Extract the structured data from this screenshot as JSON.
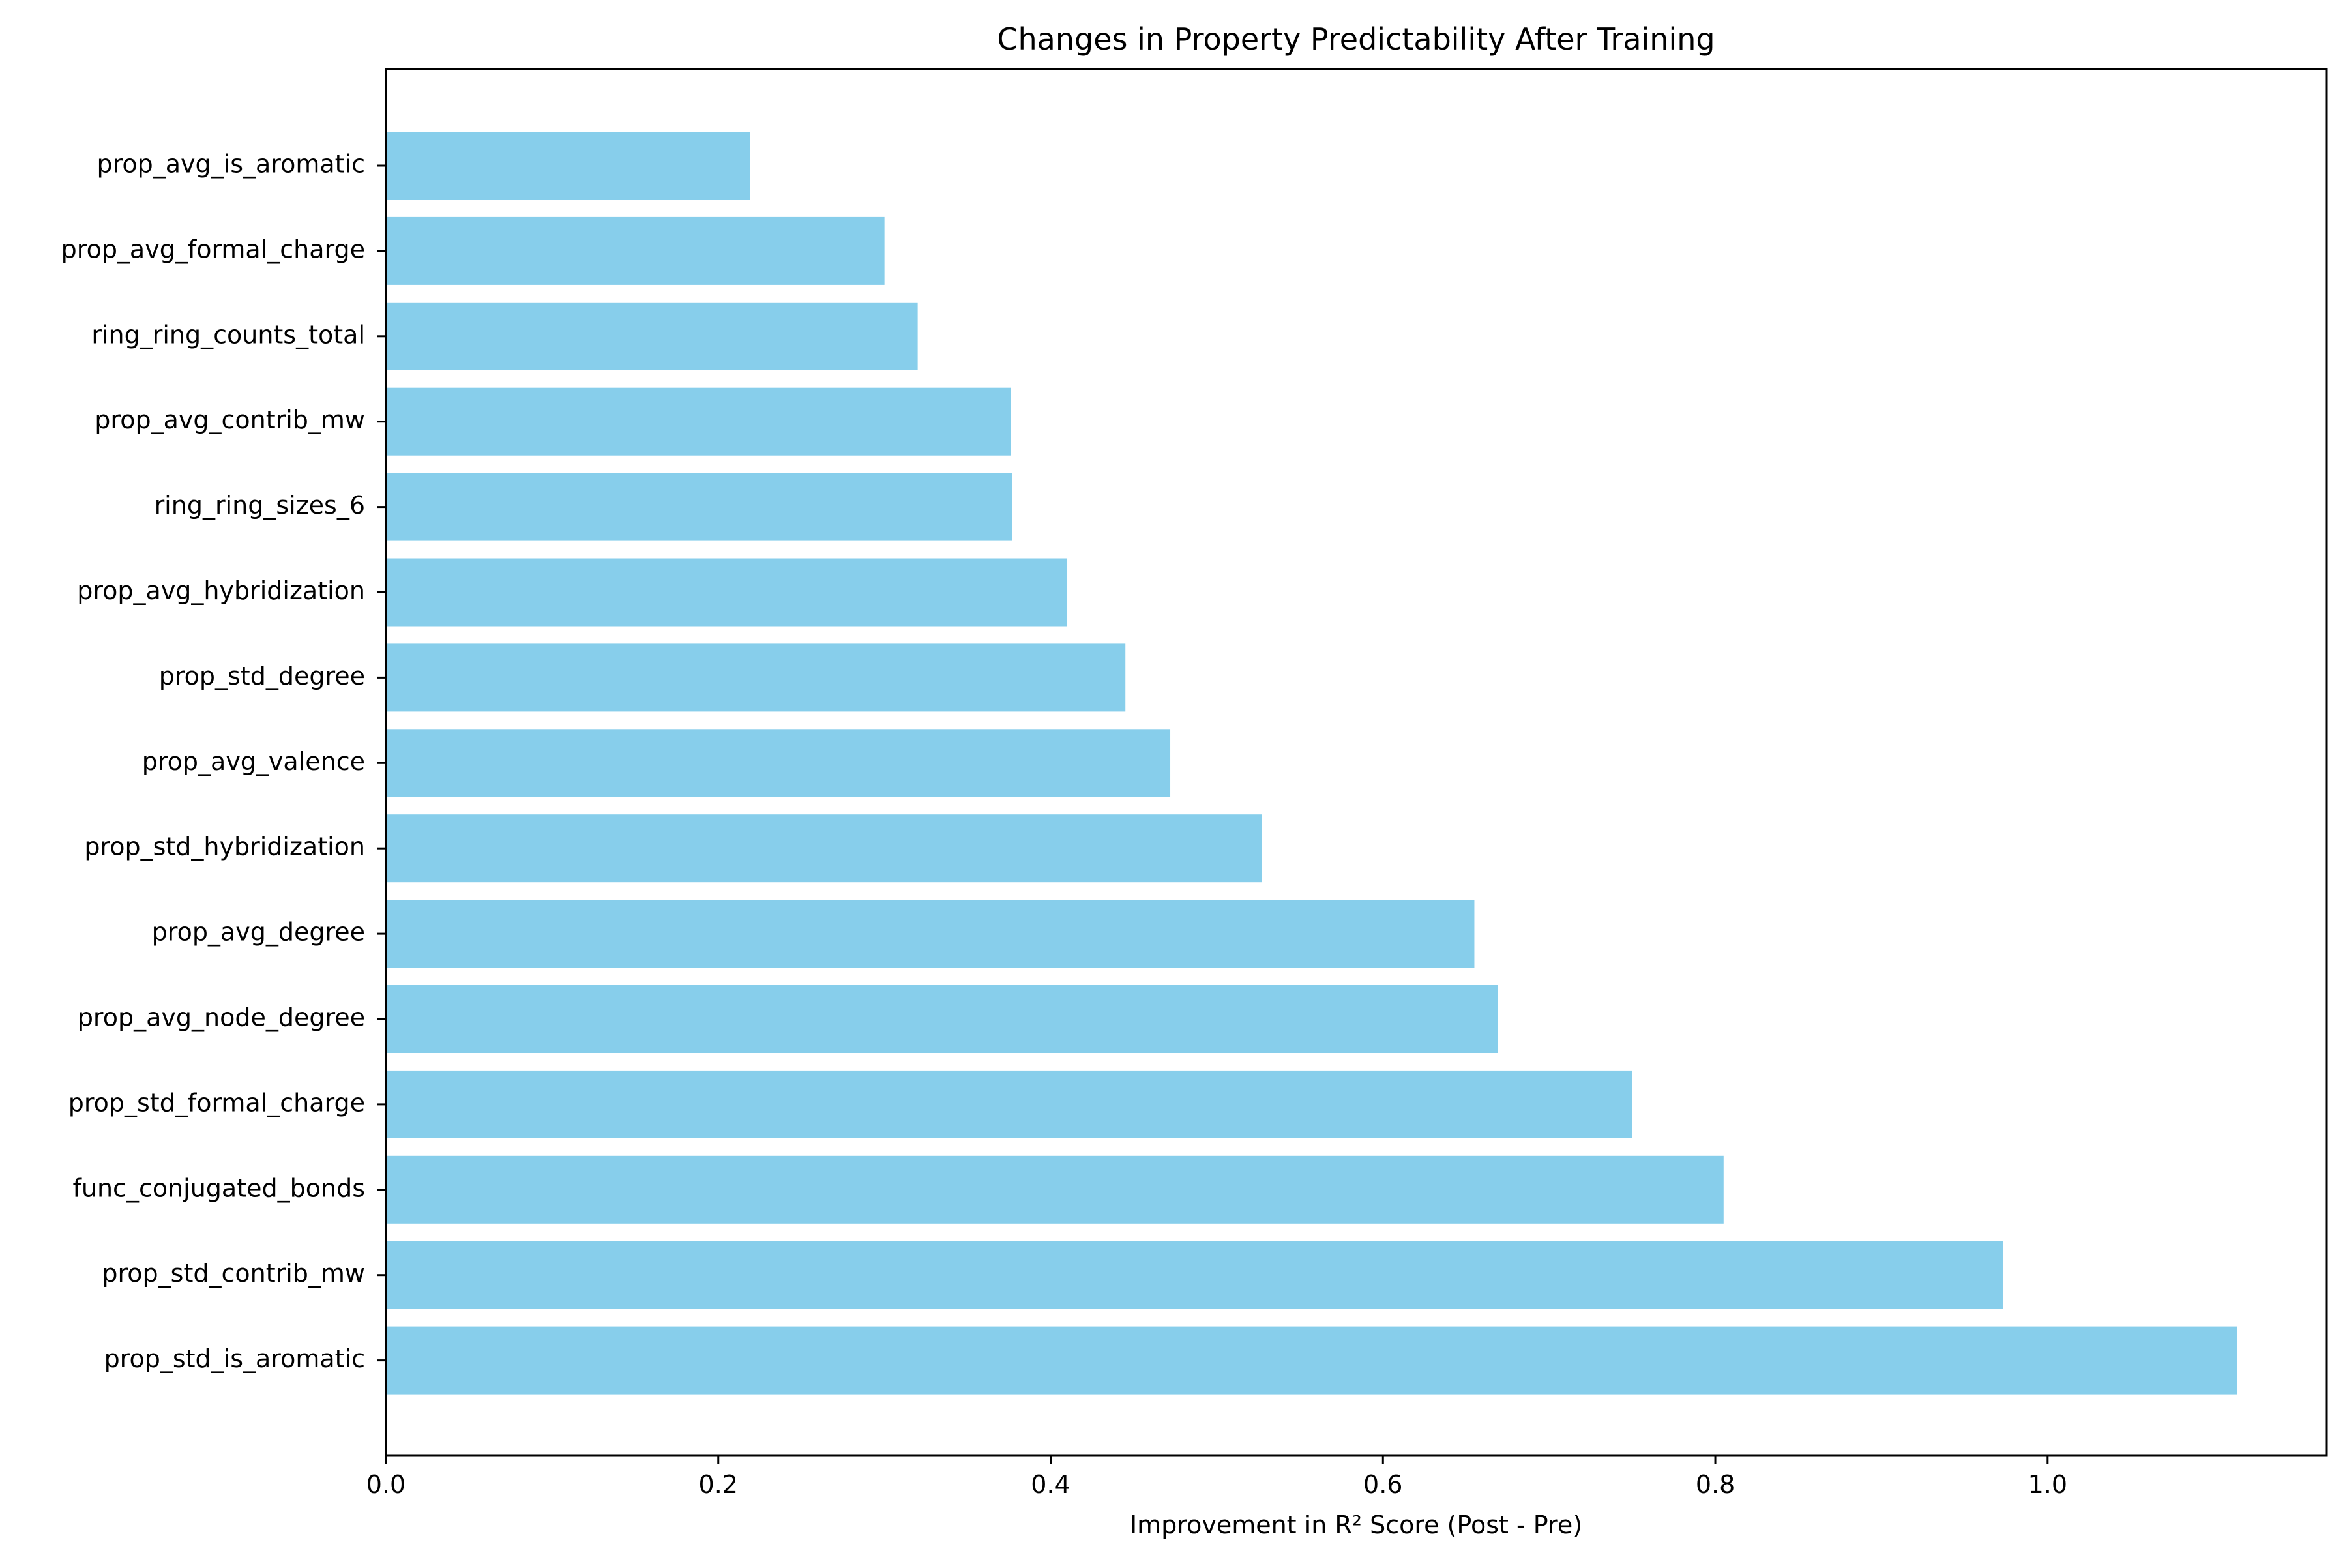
{
  "chart_data": {
    "type": "bar",
    "orientation": "horizontal",
    "title": "Changes in Property Predictability After Training",
    "xlabel": "Improvement in R² Score (Post - Pre)",
    "ylabel": "",
    "xlim": [
      0,
      1.168
    ],
    "xticks": [
      0.0,
      0.2,
      0.4,
      0.6,
      0.8,
      1.0
    ],
    "xtick_labels": [
      "0.0",
      "0.2",
      "0.4",
      "0.6",
      "0.8",
      "1.0"
    ],
    "grid": false,
    "legend": false,
    "bar_color": "#87CEEB",
    "categories": [
      "prop_avg_is_aromatic",
      "prop_avg_formal_charge",
      "ring_ring_counts_total",
      "prop_avg_contrib_mw",
      "ring_ring_sizes_6",
      "prop_avg_hybridization",
      "prop_std_degree",
      "prop_avg_valence",
      "prop_std_hybridization",
      "prop_avg_degree",
      "prop_avg_node_degree",
      "prop_std_formal_charge",
      "func_conjugated_bonds",
      "prop_std_contrib_mw",
      "prop_std_is_aromatic"
    ],
    "values": [
      0.219,
      0.3,
      0.32,
      0.376,
      0.377,
      0.41,
      0.445,
      0.472,
      0.527,
      0.655,
      0.669,
      0.75,
      0.805,
      0.973,
      1.114
    ]
  }
}
